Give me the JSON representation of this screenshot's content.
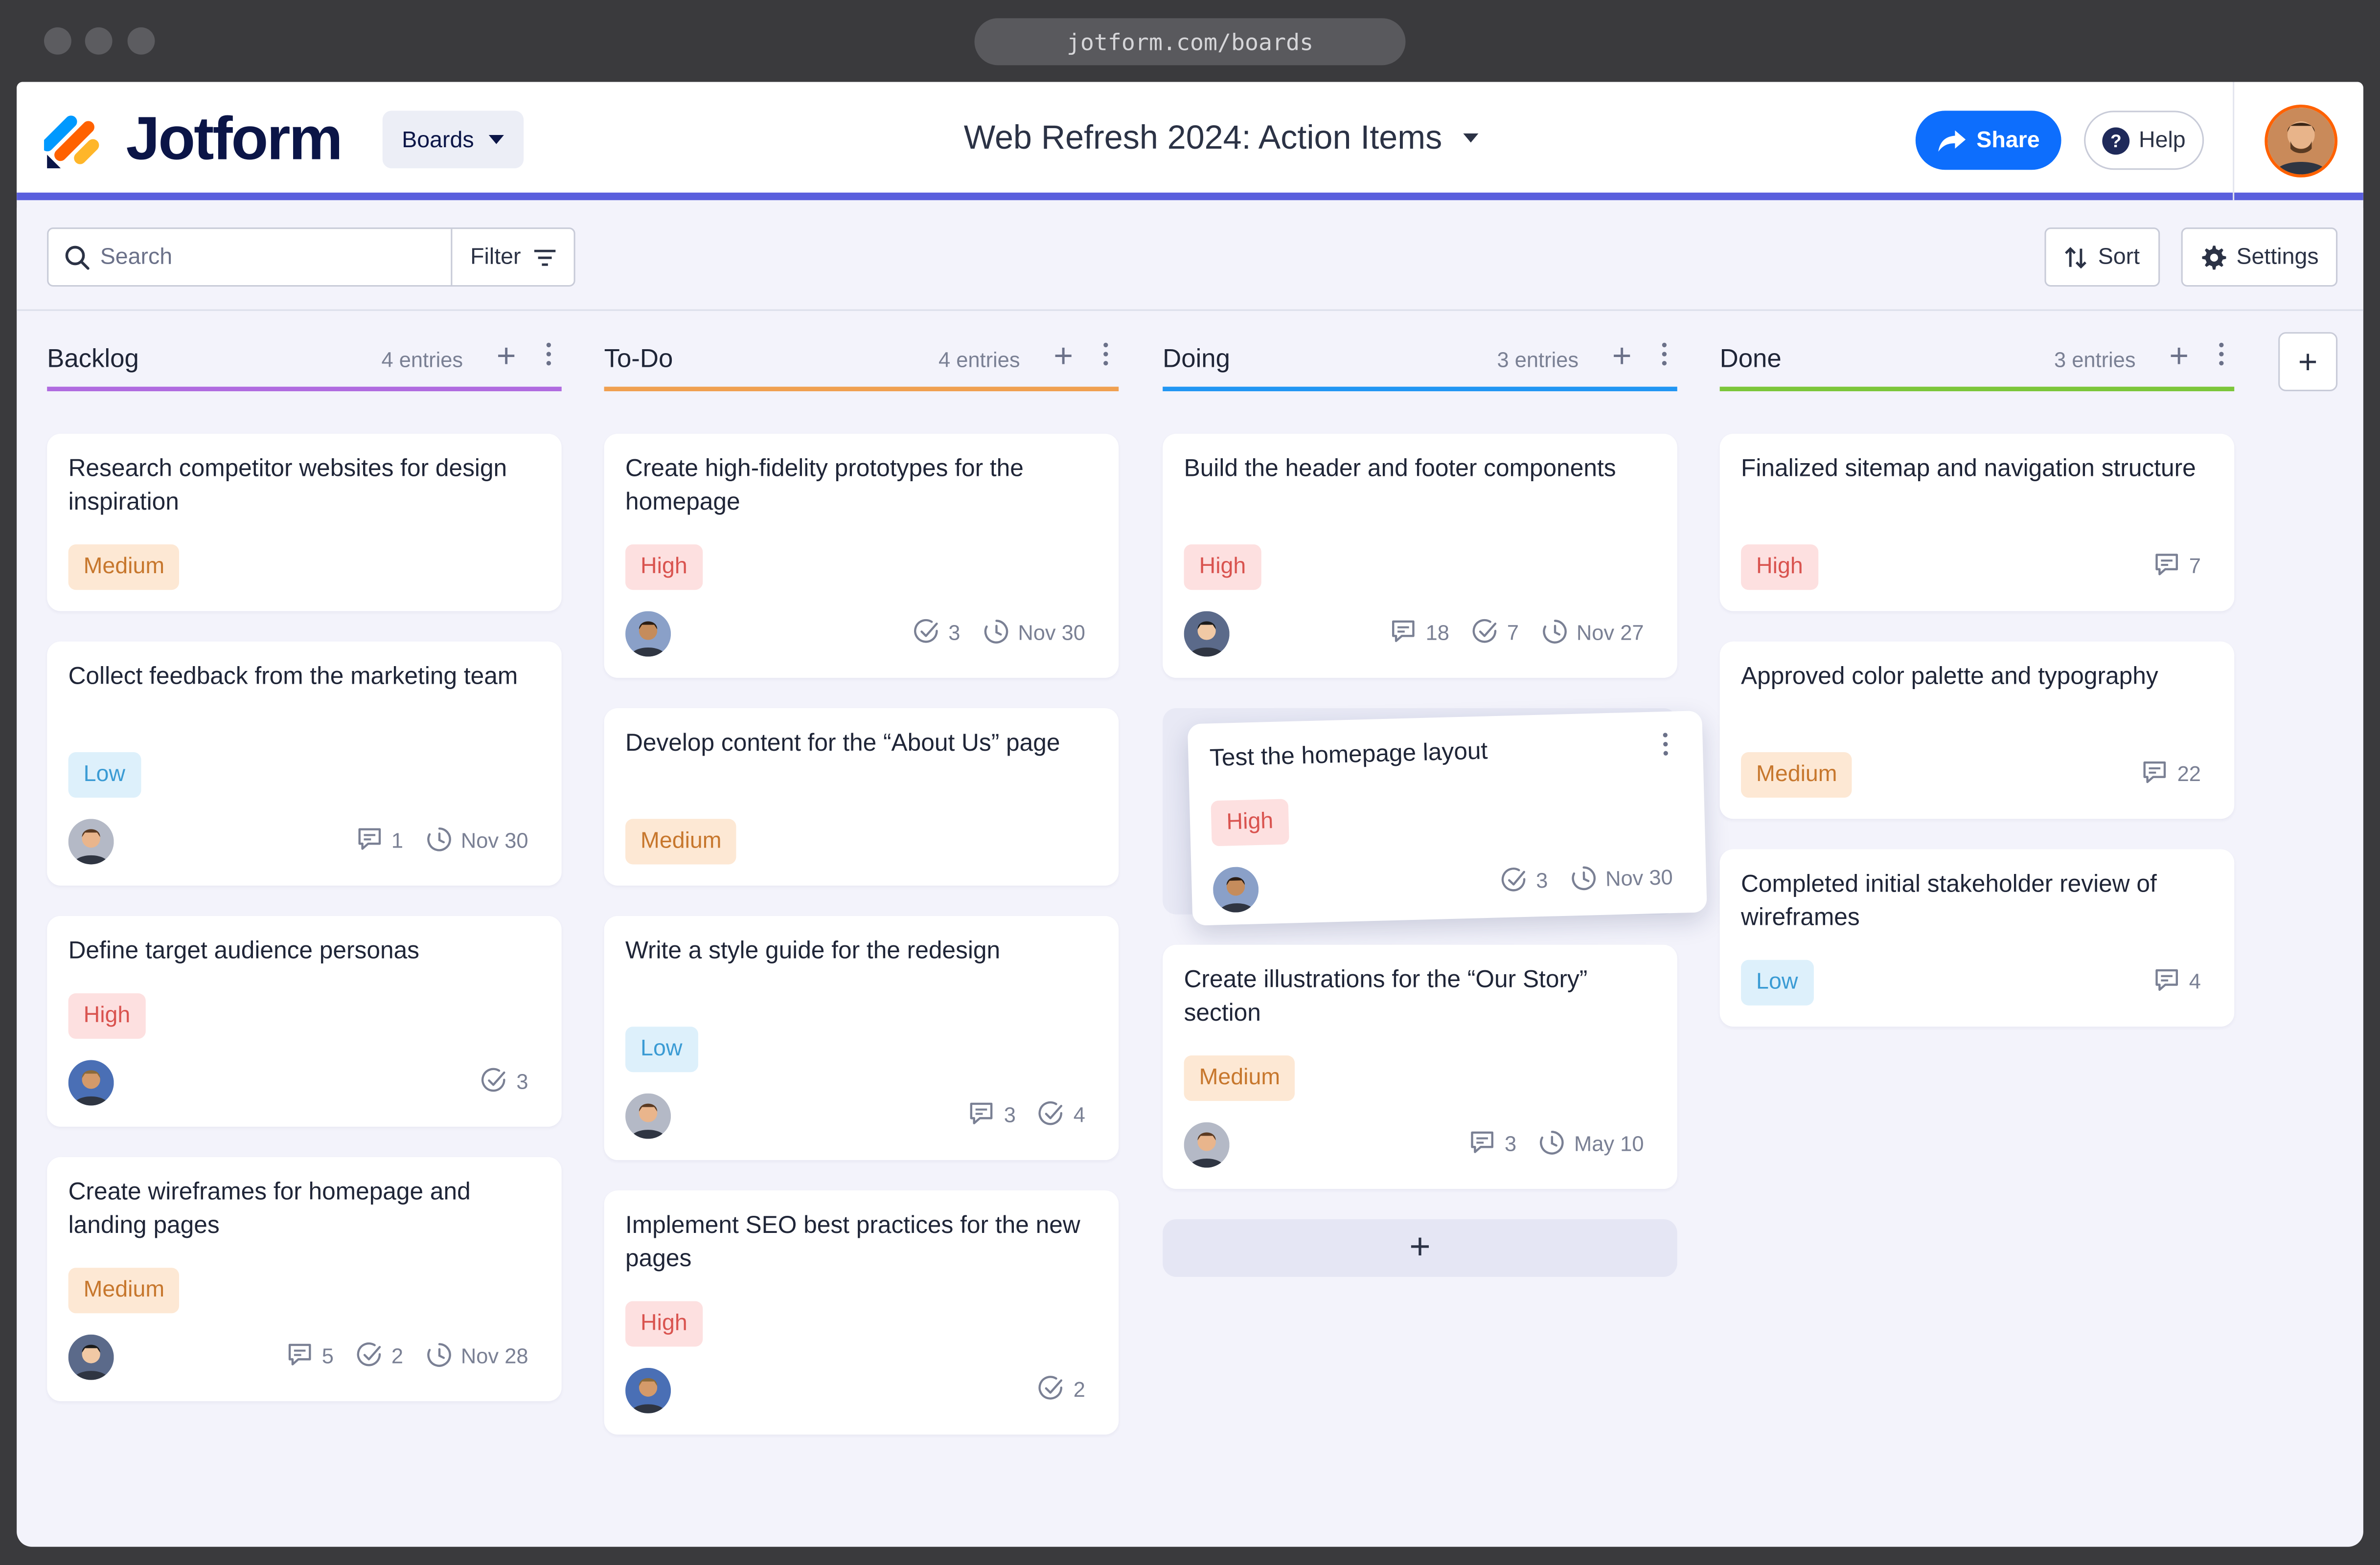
{
  "browser": {
    "url": "jotform.com/boards"
  },
  "brand": {
    "name": "Jotform",
    "colors": {
      "orange": "#ff6100",
      "blue": "#0099ff",
      "yellow": "#ffb629",
      "navy": "#0b1547"
    }
  },
  "header": {
    "boards_label": "Boards",
    "board_title": "Web Refresh 2024: Action Items",
    "share_label": "Share",
    "help_label": "Help",
    "accent_color": "#5a5fdd"
  },
  "toolbar": {
    "search_placeholder": "Search",
    "filter_label": "Filter",
    "sort_label": "Sort",
    "settings_label": "Settings"
  },
  "columns": [
    {
      "title": "Backlog",
      "count": "4 entries",
      "color": "#b06be0",
      "cards": [
        {
          "title": "Research competitor websites for design inspiration",
          "priority": "Medium"
        },
        {
          "title": "Collect feedback from the marketing team",
          "priority": "Low",
          "comments": "1",
          "date": "Nov 30"
        },
        {
          "title": "Define target audience personas",
          "priority": "High",
          "tasks": "3"
        },
        {
          "title": "Create wireframes for homepage and landing pages",
          "priority": "Medium",
          "comments": "5",
          "tasks": "2",
          "date": "Nov 28"
        }
      ]
    },
    {
      "title": "To-Do",
      "count": "4 entries",
      "color": "#f0a050",
      "cards": [
        {
          "title": "Create high-fidelity prototypes for the homepage",
          "priority": "High",
          "tasks": "3",
          "date": "Nov 30"
        },
        {
          "title": "Develop content for the “About Us” page",
          "priority": "Medium"
        },
        {
          "title": "Write a style guide for the redesign",
          "priority": "Low",
          "comments": "3",
          "tasks": "4"
        },
        {
          "title": "Implement SEO best practices for the new pages",
          "priority": "High",
          "tasks": "2"
        }
      ]
    },
    {
      "title": "Doing",
      "count": "3 entries",
      "color": "#2196f3",
      "cards": [
        {
          "title": "Build the header and footer components",
          "priority": "High",
          "comments": "18",
          "tasks": "7",
          "date": "Nov 27"
        },
        {
          "title": "Test the homepage layout",
          "priority": "High",
          "tasks": "3",
          "date": "Nov 30"
        },
        {
          "title": "Create illustrations for the “Our Story” section",
          "priority": "Medium",
          "comments": "3",
          "date": "May 10"
        }
      ],
      "add_label": "+"
    },
    {
      "title": "Done",
      "count": "3 entries",
      "color": "#7cc63a",
      "cards": [
        {
          "title": "Finalized sitemap and navigation structure",
          "priority": "High",
          "comments": "7"
        },
        {
          "title": "Approved color palette and typography",
          "priority": "Medium",
          "comments": "22"
        },
        {
          "title": "Completed initial stakeholder review of wireframes",
          "priority": "Low",
          "comments": "4"
        }
      ]
    }
  ],
  "add_column_label": "+",
  "add_entry_label": "+",
  "icons": [
    "search-icon",
    "filter-icon",
    "sort-icon",
    "gear-icon",
    "share-arrow-icon",
    "help-icon",
    "comment-icon",
    "check-circle-icon",
    "clock-icon",
    "kebab-icon",
    "plus-icon"
  ]
}
